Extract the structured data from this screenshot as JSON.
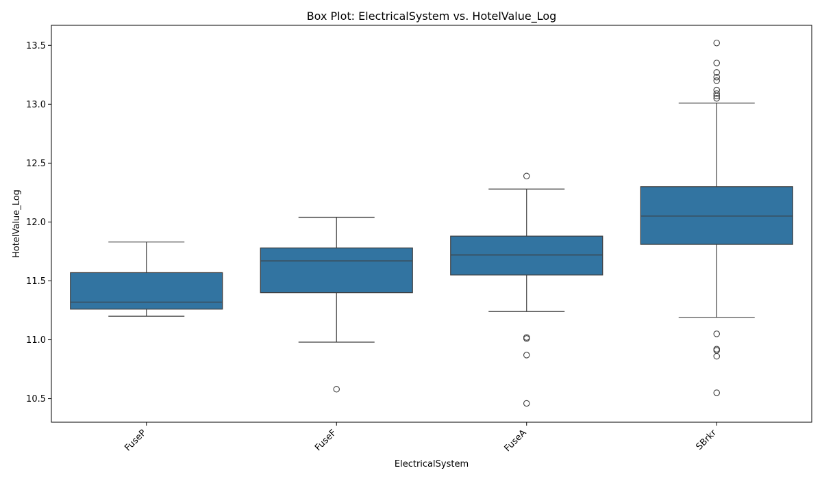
{
  "chart_data": {
    "type": "box",
    "title": "Box Plot: ElectricalSystem vs. HotelValue_Log",
    "xlabel": "ElectricalSystem",
    "ylabel": "HotelValue_Log",
    "ylim": [
      10.3,
      13.67
    ],
    "yticks": [
      "10.5",
      "11.0",
      "11.5",
      "12.0",
      "12.5",
      "13.0",
      "13.5"
    ],
    "grid": false,
    "box_color": "#3274a1",
    "line_color": "#3d3d3d",
    "categories": [
      "FuseP",
      "FuseF",
      "FuseA",
      "SBrkr"
    ],
    "boxes": [
      {
        "category": "FuseP",
        "whisker_low": 11.2,
        "q1": 11.26,
        "median": 11.32,
        "q3": 11.57,
        "whisker_high": 11.83,
        "outliers": []
      },
      {
        "category": "FuseF",
        "whisker_low": 10.98,
        "q1": 11.4,
        "median": 11.67,
        "q3": 11.78,
        "whisker_high": 12.04,
        "outliers": [
          10.58
        ]
      },
      {
        "category": "FuseA",
        "whisker_low": 11.24,
        "q1": 11.55,
        "median": 11.72,
        "q3": 11.88,
        "whisker_high": 12.28,
        "outliers": [
          12.39,
          11.02,
          11.01,
          10.87,
          10.46
        ]
      },
      {
        "category": "SBrkr",
        "whisker_low": 11.19,
        "q1": 11.81,
        "median": 12.05,
        "q3": 12.3,
        "whisker_high": 13.01,
        "outliers": [
          13.52,
          13.35,
          13.27,
          13.23,
          13.2,
          13.12,
          13.09,
          13.07,
          13.05,
          11.05,
          10.92,
          10.91,
          10.86,
          10.55
        ]
      }
    ]
  }
}
